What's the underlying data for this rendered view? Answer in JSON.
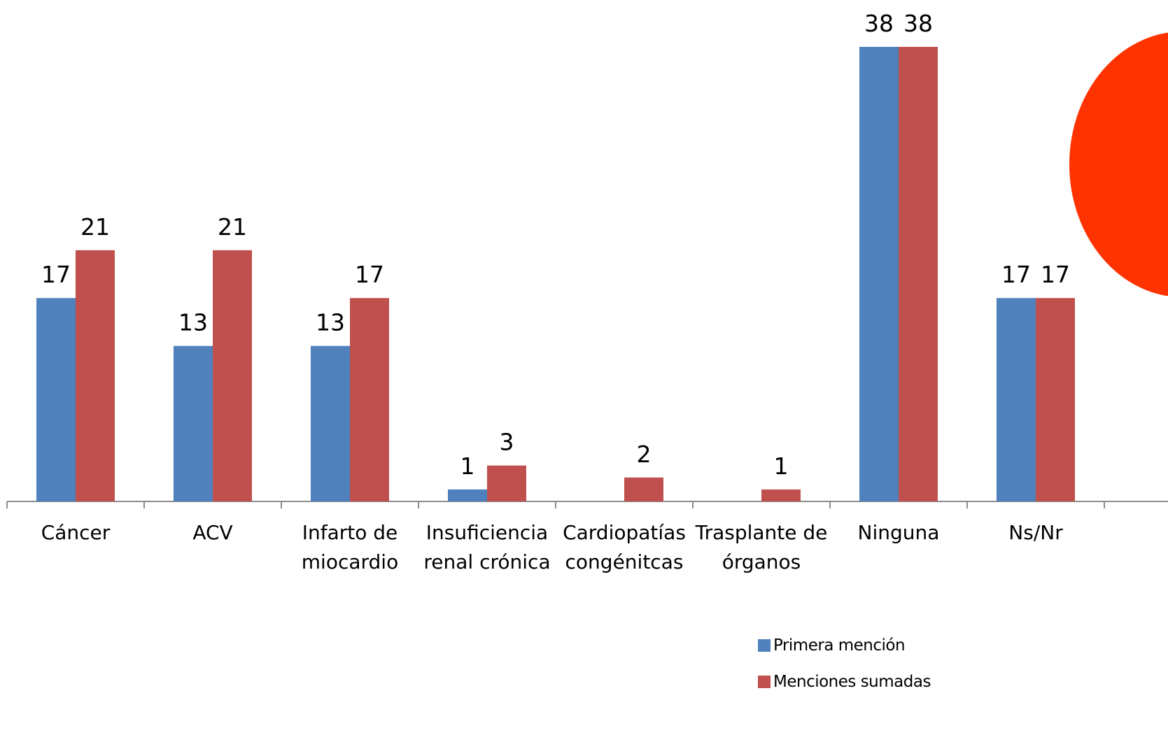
{
  "chart_data": {
    "type": "bar",
    "categories": [
      "Cáncer",
      "ACV",
      "Infarto de miocardio",
      "Insuficiencia renal crónica",
      "Cardiopatías congénitcas",
      "Trasplante de órganos",
      "Ninguna",
      "Ns/Nr"
    ],
    "series": [
      {
        "name": "Primera mención",
        "color": "#4f81bd",
        "values": [
          17,
          13,
          13,
          1,
          null,
          null,
          38,
          17
        ]
      },
      {
        "name": "Menciones sumadas",
        "color": "#c0504d",
        "values": [
          21,
          21,
          17,
          3,
          2,
          1,
          38,
          17
        ]
      }
    ],
    "ylim": [
      0,
      38
    ],
    "legend": "bottom-right"
  }
}
